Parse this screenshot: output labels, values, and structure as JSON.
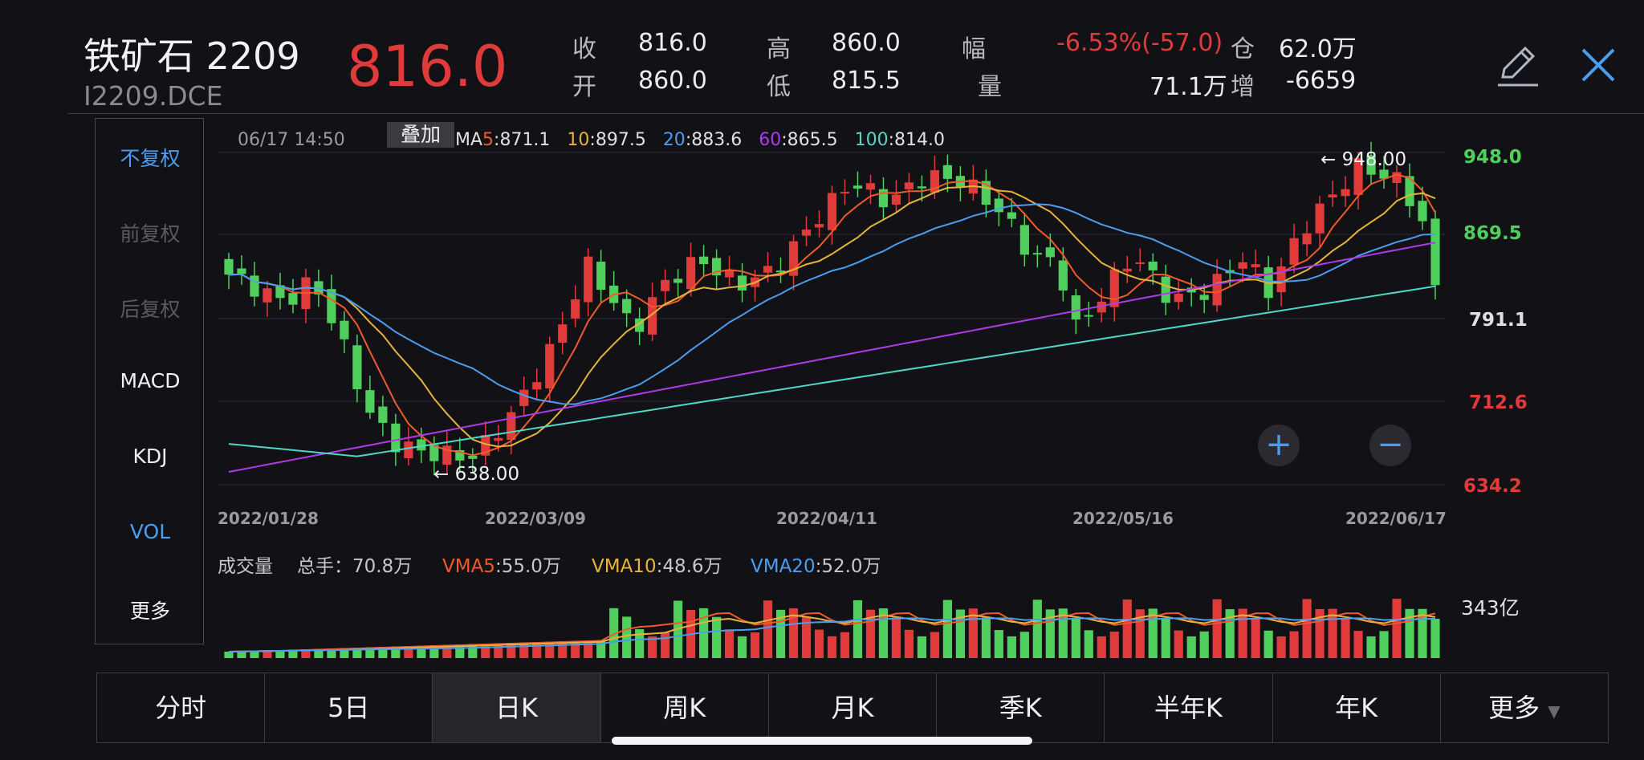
{
  "header": {
    "title": "铁矿石 2209",
    "code": "I2209.DCE",
    "last_price": "816.0",
    "quote": {
      "close_label": "收",
      "close": "816.0",
      "open_label": "开",
      "open": "860.0",
      "high_label": "高",
      "high": "860.0",
      "low_label": "低",
      "low": "815.5",
      "change_label": "幅",
      "change": "-6.53%(-57.0)",
      "volume_label": "量",
      "volume": "71.1万",
      "oi_label": "仓",
      "oi": "62.0万",
      "oi_change_label": "增",
      "oi_change": "-6659"
    }
  },
  "sidebar": {
    "items": [
      "不复权",
      "前复权",
      "后复权",
      "MACD",
      "KDJ",
      "VOL",
      "更多"
    ]
  },
  "overlay_label": "叠加",
  "chart": {
    "timestamp": "06/17 14:50",
    "ma_legend": [
      {
        "label": "MA",
        "period": "5",
        "value": ":871.1"
      },
      {
        "label": "",
        "period": "10",
        "value": ":897.5"
      },
      {
        "label": "",
        "period": "20",
        "value": ":883.6"
      },
      {
        "label": "",
        "period": "60",
        "value": ":865.5"
      },
      {
        "label": "",
        "period": "100",
        "value": ":814.0"
      }
    ],
    "colors": {
      "ma5": "#f05a2a",
      "ma10": "#e8b23a",
      "ma20": "#4a9df0",
      "ma60": "#b03ae8",
      "ma100": "#4fd8c8",
      "up": "#e03a3a",
      "down": "#4fcf5c"
    },
    "y_ticks": [
      "948.0",
      "869.5",
      "791.1",
      "712.6",
      "634.2"
    ],
    "x_ticks": [
      "2022/01/28",
      "2022/03/09",
      "2022/04/11",
      "2022/05/16",
      "2022/06/17"
    ],
    "max_label": "948.00",
    "min_label": "638.00",
    "zoom_in": "+",
    "zoom_out": "−"
  },
  "volume": {
    "title": "成交量",
    "total": "总手：70.8万",
    "vma5_label": "VMA5",
    "vma5": ":55.0万",
    "vma10_label": "VMA10",
    "vma10": ":48.6万",
    "vma20_label": "VMA20",
    "vma20": ":52.0万",
    "axis_label": "343亿"
  },
  "tabs": [
    "分时",
    "5日",
    "日K",
    "周K",
    "月K",
    "季K",
    "半年K",
    "年K",
    "更多"
  ],
  "active_tab": "日K"
}
